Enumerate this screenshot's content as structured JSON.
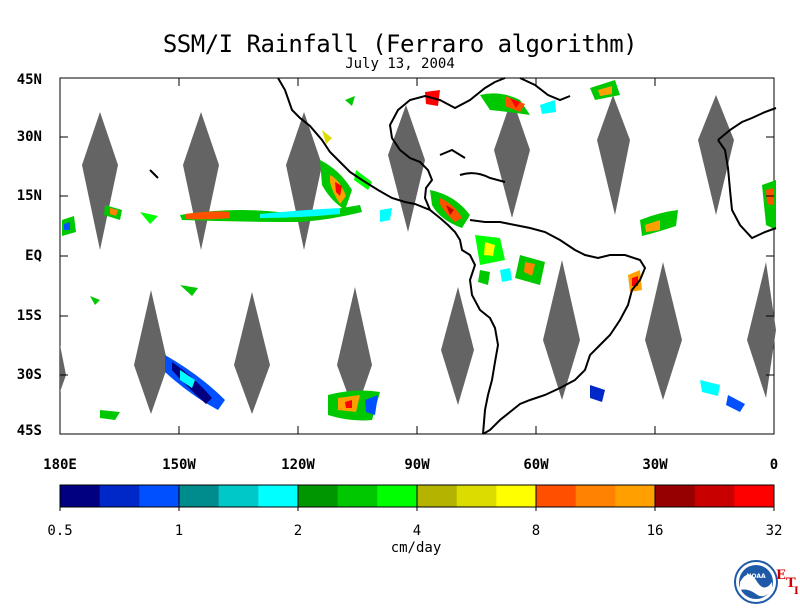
{
  "title": "SSM/I Rainfall (Ferraro algorithm)",
  "date": "July 13, 2004",
  "lat_labels": [
    "45N",
    "30N",
    "15N",
    "EQ",
    "15S",
    "30S",
    "45S"
  ],
  "lon_labels": [
    "180E",
    "150W",
    "120W",
    "90W",
    "60W",
    "30W",
    "0"
  ],
  "colorbar": {
    "tick_labels": [
      "0.5",
      "1",
      "2",
      "4",
      "8",
      "16",
      "32"
    ],
    "unit": "cm/day",
    "colors": [
      "#000080",
      "#0028c8",
      "#0050ff",
      "#008c8c",
      "#00c8c8",
      "#00ffff",
      "#009600",
      "#00c800",
      "#00ff00",
      "#b4b400",
      "#dcdc00",
      "#ffff00",
      "#ff5000",
      "#ff8200",
      "#ffa000",
      "#960000",
      "#c80000",
      "#ff0000"
    ]
  },
  "logo": {
    "text": "NOAA",
    "side_letters": [
      "E",
      "T",
      "I"
    ]
  },
  "colors": {
    "land_outline": "#000000",
    "no_data_swath": "#646464"
  }
}
